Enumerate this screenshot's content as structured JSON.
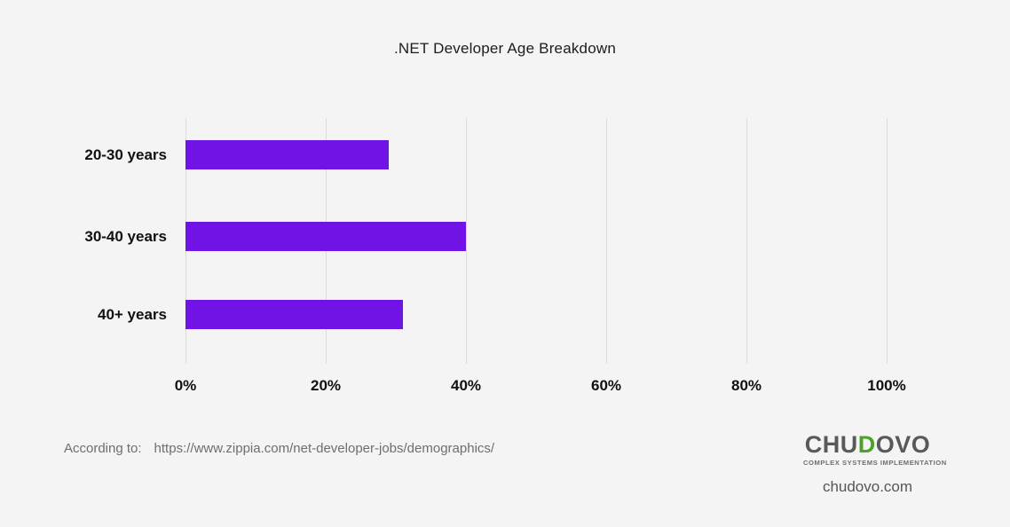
{
  "title": ".NET Developer Age Breakdown",
  "colors": {
    "background": "#f4f4f4",
    "bar": "#7113e4",
    "grid": "#dcdcdc",
    "text": "#111111",
    "muted": "#6e6e6e",
    "logo_dark": "#58595b",
    "logo_green": "#4ba229"
  },
  "chart_data": {
    "type": "bar",
    "orientation": "horizontal",
    "title": ".NET Developer Age Breakdown",
    "categories": [
      "20-30 years",
      "30-40 years",
      "40+ years"
    ],
    "values": [
      29,
      40,
      31
    ],
    "value_suffix": "%",
    "xlabel": "",
    "ylabel": "",
    "xlim": [
      0,
      100
    ],
    "x_ticks": [
      0,
      20,
      40,
      60,
      80,
      100
    ],
    "x_tick_labels": [
      "0%",
      "20%",
      "40%",
      "60%",
      "80%",
      "100%"
    ],
    "grid": true,
    "legend": false,
    "bar_color": "#7113e4"
  },
  "source": {
    "label": "According to:",
    "url": "https://www.zippia.com/net-developer-jobs/demographics/"
  },
  "logo": {
    "name_pre": "CHU",
    "name_d": "D",
    "name_post": "OVO",
    "tagline": "COMPLEX SYSTEMS IMPLEMENTATION",
    "domain": "chudovo.com"
  }
}
